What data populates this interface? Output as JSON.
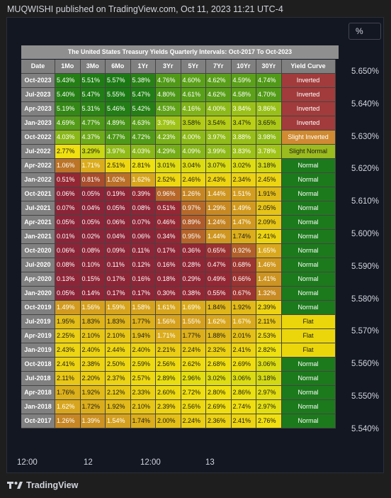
{
  "header_text": "MUQWISHI published on TradingView.com, Oct 11, 2023 11:21 UTC-4",
  "scale_button": "%",
  "yaxis_labels": [
    "5.650%",
    "5.640%",
    "5.630%",
    "5.620%",
    "5.610%",
    "5.600%",
    "5.590%",
    "5.580%",
    "5.570%",
    "5.560%",
    "5.550%",
    "5.540%"
  ],
  "xaxis_labels": [
    "12:00",
    "12",
    "12:00",
    "13"
  ],
  "brand": "TradingView",
  "colors": {
    "inverted": "#a23b3b",
    "slight_inverted": "#d08a32",
    "slight_normal": "#9cbb1e",
    "normal": "#1c7a1c",
    "flat": "#ebd60c"
  },
  "chart_data": {
    "type": "table",
    "title": "The United States Treasury Yields Quarterly Intervals: Oct-2017 To Oct-2023",
    "columns": [
      "Date",
      "1Mo",
      "3Mo",
      "6Mo",
      "1Yr",
      "3Yr",
      "5Yr",
      "7Yr",
      "10Yr",
      "30Yr",
      "Yield Curve"
    ],
    "rows": [
      {
        "date": "Oct-2023",
        "values": [
          "5.43%",
          "5.51%",
          "5.57%",
          "5.38%",
          "4.76%",
          "4.60%",
          "4.62%",
          "4.59%",
          "4.74%"
        ],
        "curve": "Inverted"
      },
      {
        "date": "Jul-2023",
        "values": [
          "5.40%",
          "5.47%",
          "5.55%",
          "5.47%",
          "4.80%",
          "4.61%",
          "4.62%",
          "4.58%",
          "4.70%"
        ],
        "curve": "Inverted"
      },
      {
        "date": "Apr-2023",
        "values": [
          "5.19%",
          "5.31%",
          "5.46%",
          "5.42%",
          "4.53%",
          "4.16%",
          "4.00%",
          "3.84%",
          "3.86%"
        ],
        "curve": "Inverted"
      },
      {
        "date": "Jan-2023",
        "values": [
          "4.69%",
          "4.77%",
          "4.89%",
          "4.63%",
          "3.79%",
          "3.58%",
          "3.54%",
          "3.47%",
          "3.65%"
        ],
        "curve": "Inverted"
      },
      {
        "date": "Oct-2022",
        "values": [
          "4.03%",
          "4.37%",
          "4.77%",
          "4.72%",
          "4.23%",
          "4.00%",
          "3.97%",
          "3.88%",
          "3.98%"
        ],
        "curve": "Slight Inverted"
      },
      {
        "date": "Jul-2022",
        "values": [
          "2.77%",
          "3.29%",
          "3.97%",
          "4.03%",
          "4.29%",
          "4.09%",
          "3.99%",
          "3.83%",
          "3.78%"
        ],
        "curve": "Slight Normal"
      },
      {
        "date": "Apr-2022",
        "values": [
          "1.06%",
          "1.71%",
          "2.51%",
          "2.81%",
          "3.01%",
          "3.04%",
          "3.07%",
          "3.02%",
          "3.18%"
        ],
        "curve": "Normal"
      },
      {
        "date": "Jan-2022",
        "values": [
          "0.51%",
          "0.81%",
          "1.02%",
          "1.62%",
          "2.52%",
          "2.46%",
          "2.43%",
          "2.34%",
          "2.45%"
        ],
        "curve": "Normal"
      },
      {
        "date": "Oct-2021",
        "values": [
          "0.06%",
          "0.05%",
          "0.19%",
          "0.39%",
          "0.96%",
          "1.26%",
          "1.44%",
          "1.51%",
          "1.91%"
        ],
        "curve": "Normal"
      },
      {
        "date": "Jul-2021",
        "values": [
          "0.07%",
          "0.04%",
          "0.05%",
          "0.08%",
          "0.51%",
          "0.97%",
          "1.29%",
          "1.49%",
          "2.05%"
        ],
        "curve": "Normal"
      },
      {
        "date": "Apr-2021",
        "values": [
          "0.05%",
          "0.05%",
          "0.06%",
          "0.07%",
          "0.46%",
          "0.89%",
          "1.24%",
          "1.47%",
          "2.09%"
        ],
        "curve": "Normal"
      },
      {
        "date": "Jan-2021",
        "values": [
          "0.01%",
          "0.02%",
          "0.04%",
          "0.06%",
          "0.34%",
          "0.95%",
          "1.44%",
          "1.74%",
          "2.41%"
        ],
        "curve": "Normal"
      },
      {
        "date": "Oct-2020",
        "values": [
          "0.06%",
          "0.08%",
          "0.09%",
          "0.11%",
          "0.17%",
          "0.36%",
          "0.65%",
          "0.92%",
          "1.65%"
        ],
        "curve": "Normal"
      },
      {
        "date": "Jul-2020",
        "values": [
          "0.08%",
          "0.10%",
          "0.11%",
          "0.12%",
          "0.16%",
          "0.28%",
          "0.47%",
          "0.68%",
          "1.46%"
        ],
        "curve": "Normal"
      },
      {
        "date": "Apr-2020",
        "values": [
          "0.13%",
          "0.15%",
          "0.17%",
          "0.16%",
          "0.18%",
          "0.29%",
          "0.49%",
          "0.66%",
          "1.41%"
        ],
        "curve": "Normal"
      },
      {
        "date": "Jan-2020",
        "values": [
          "0.05%",
          "0.14%",
          "0.17%",
          "0.17%",
          "0.30%",
          "0.38%",
          "0.55%",
          "0.67%",
          "1.32%"
        ],
        "curve": "Normal"
      },
      {
        "date": "Oct-2019",
        "values": [
          "1.49%",
          "1.56%",
          "1.59%",
          "1.58%",
          "1.61%",
          "1.69%",
          "1.84%",
          "1.92%",
          "2.39%"
        ],
        "curve": "Normal"
      },
      {
        "date": "Jul-2019",
        "values": [
          "1.95%",
          "1.83%",
          "1.83%",
          "1.77%",
          "1.56%",
          "1.55%",
          "1.62%",
          "1.67%",
          "2.11%"
        ],
        "curve": "Flat"
      },
      {
        "date": "Apr-2019",
        "values": [
          "2.25%",
          "2.10%",
          "2.10%",
          "1.94%",
          "1.71%",
          "1.77%",
          "1.88%",
          "2.01%",
          "2.53%"
        ],
        "curve": "Flat"
      },
      {
        "date": "Jan-2019",
        "values": [
          "2.43%",
          "2.40%",
          "2.44%",
          "2.40%",
          "2.21%",
          "2.24%",
          "2.32%",
          "2.41%",
          "2.82%"
        ],
        "curve": "Flat"
      },
      {
        "date": "Oct-2018",
        "values": [
          "2.41%",
          "2.38%",
          "2.50%",
          "2.59%",
          "2.56%",
          "2.62%",
          "2.68%",
          "2.69%",
          "3.06%"
        ],
        "curve": "Normal"
      },
      {
        "date": "Jul-2018",
        "values": [
          "2.11%",
          "2.20%",
          "2.37%",
          "2.57%",
          "2.89%",
          "2.96%",
          "3.02%",
          "3.06%",
          "3.18%"
        ],
        "curve": "Normal"
      },
      {
        "date": "Apr-2018",
        "values": [
          "1.76%",
          "1.92%",
          "2.12%",
          "2.33%",
          "2.60%",
          "2.72%",
          "2.80%",
          "2.86%",
          "2.97%"
        ],
        "curve": "Normal"
      },
      {
        "date": "Jan-2018",
        "values": [
          "1.62%",
          "1.72%",
          "1.92%",
          "2.10%",
          "2.39%",
          "2.56%",
          "2.69%",
          "2.74%",
          "2.97%"
        ],
        "curve": "Normal"
      },
      {
        "date": "Oct-2017",
        "values": [
          "1.26%",
          "1.39%",
          "1.54%",
          "1.74%",
          "2.00%",
          "2.24%",
          "2.36%",
          "2.41%",
          "2.76%"
        ],
        "curve": "Normal"
      }
    ]
  }
}
